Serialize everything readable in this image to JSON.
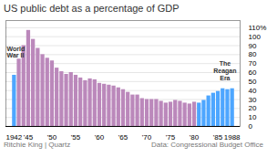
{
  "chart_data": {
    "type": "bar",
    "title": "US public debt as a percentage of GDP",
    "caption": "Ritchie King | Quartz",
    "source": "Data: Congressional Budget Office",
    "x": [
      1942,
      1943,
      1944,
      1945,
      1946,
      1947,
      1948,
      1949,
      1950,
      1951,
      1952,
      1953,
      1954,
      1955,
      1956,
      1957,
      1958,
      1959,
      1960,
      1961,
      1962,
      1963,
      1964,
      1965,
      1966,
      1967,
      1968,
      1969,
      1970,
      1971,
      1972,
      1973,
      1974,
      1975,
      1976,
      1977,
      1978,
      1979,
      1980,
      1981,
      1982,
      1983,
      1984,
      1985,
      1986,
      1987,
      1988
    ],
    "values": [
      57,
      75,
      90,
      107,
      97,
      87,
      80,
      76,
      73,
      65,
      61,
      58,
      60,
      57,
      54,
      51,
      53,
      52,
      48,
      47,
      46,
      45,
      43,
      41,
      38,
      35,
      35,
      31,
      30,
      30,
      30,
      28,
      26,
      27,
      29,
      28,
      26,
      25,
      27,
      26,
      29,
      34,
      37,
      39,
      42,
      41,
      42
    ],
    "colors": [
      "#4da6ff",
      "#bb88bb",
      "#bb88bb",
      "#bb88bb",
      "#bb88bb",
      "#bb88bb",
      "#bb88bb",
      "#bb88bb",
      "#bb88bb",
      "#bb88bb",
      "#bb88bb",
      "#bb88bb",
      "#bb88bb",
      "#bb88bb",
      "#bb88bb",
      "#bb88bb",
      "#bb88bb",
      "#bb88bb",
      "#bb88bb",
      "#bb88bb",
      "#bb88bb",
      "#bb88bb",
      "#bb88bb",
      "#bb88bb",
      "#bb88bb",
      "#bb88bb",
      "#bb88bb",
      "#bb88bb",
      "#bb88bb",
      "#bb88bb",
      "#bb88bb",
      "#bb88bb",
      "#bb88bb",
      "#bb88bb",
      "#bb88bb",
      "#bb88bb",
      "#bb88bb",
      "#bb88bb",
      "#bb88bb",
      "#4da6ff",
      "#4da6ff",
      "#4da6ff",
      "#4da6ff",
      "#4da6ff",
      "#4da6ff",
      "#4da6ff",
      "#4da6ff"
    ],
    "xlim": [
      1940.3,
      1989.7
    ],
    "xticks": [
      {
        "value": 1942,
        "label": "1942"
      },
      {
        "value": 1945,
        "label": "'45"
      },
      {
        "value": 1950,
        "label": "'50"
      },
      {
        "value": 1955,
        "label": "'55"
      },
      {
        "value": 1960,
        "label": "'60"
      },
      {
        "value": 1965,
        "label": "'65"
      },
      {
        "value": 1970,
        "label": "'70"
      },
      {
        "value": 1975,
        "label": "'75"
      },
      {
        "value": 1980,
        "label": "'80"
      },
      {
        "value": 1985,
        "label": "'85"
      },
      {
        "value": 1988,
        "label": "1988"
      }
    ],
    "ylim": [
      0,
      118
    ],
    "yticks": [
      0,
      10,
      20,
      30,
      40,
      50,
      60,
      70,
      80,
      90,
      100,
      {
        "value": 110,
        "label": "110%"
      }
    ],
    "grid": true,
    "annotations": [
      {
        "text": "World\nWar II",
        "x": 1940.5,
        "y": 83
      },
      {
        "text": "The\nReagan\nEra",
        "x": 1986.5,
        "y": 62
      }
    ]
  }
}
